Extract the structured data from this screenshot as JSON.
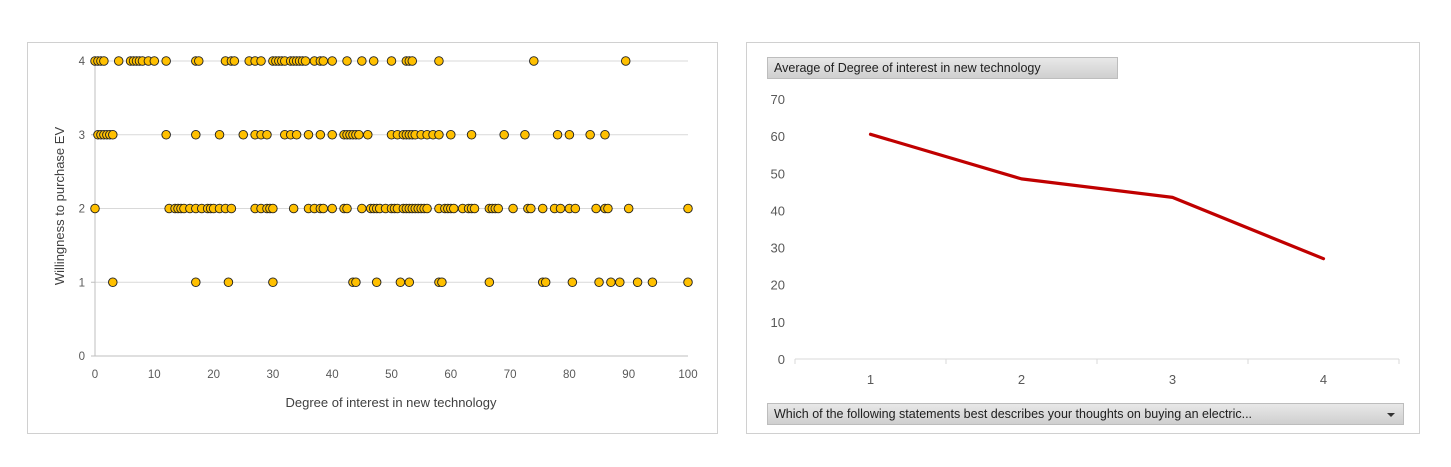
{
  "chart_data": [
    {
      "type": "scatter",
      "xlabel": "Degree of interest in new technology",
      "ylabel": "Willingness to purchase EV",
      "xlim": [
        0,
        100
      ],
      "ylim": [
        0,
        4
      ],
      "x_ticks": [
        "0",
        "10",
        "20",
        "30",
        "40",
        "50",
        "60",
        "70",
        "80",
        "90",
        "100"
      ],
      "y_ticks": [
        "0",
        "1",
        "2",
        "3",
        "4"
      ],
      "grid": "horizontal",
      "marker_color": "#FFC000",
      "points_by_y": {
        "4": [
          0,
          0.5,
          1,
          1.5,
          4,
          6,
          6.5,
          7,
          7.5,
          8,
          9,
          10,
          12,
          17,
          17.5,
          22,
          23,
          23.5,
          26,
          27,
          28,
          30,
          30.5,
          31,
          31.5,
          32,
          33,
          33.5,
          34,
          34.5,
          35,
          35.5,
          37,
          38,
          38.5,
          40,
          42.5,
          45,
          47,
          50,
          52.5,
          53,
          53.5,
          58,
          74,
          89.5
        ],
        "3": [
          0.5,
          1,
          1.5,
          2,
          2.5,
          3,
          12,
          17,
          21,
          25,
          27,
          28,
          29,
          32,
          33,
          34,
          36,
          38,
          40,
          42,
          42.5,
          43,
          43.5,
          44,
          44.5,
          46,
          50,
          51,
          52,
          52.5,
          53,
          53.5,
          54,
          55,
          56,
          57,
          58,
          60,
          63.5,
          69,
          72.5,
          78,
          80,
          83.5,
          86
        ],
        "2": [
          0,
          12.5,
          13.5,
          14,
          14.5,
          15,
          16,
          17,
          18,
          19,
          19.5,
          20,
          21,
          22,
          23,
          27,
          28,
          29,
          29.5,
          30,
          33.5,
          36,
          37,
          38,
          38.5,
          40,
          42,
          42.5,
          45,
          46.5,
          47,
          47.5,
          48,
          49,
          50,
          50.5,
          51,
          52,
          52.5,
          53,
          53.5,
          54,
          54.5,
          55,
          55.5,
          56,
          58,
          59,
          59.5,
          60,
          60.5,
          62,
          63,
          63.5,
          64,
          66.5,
          67,
          67.5,
          68,
          70.5,
          73,
          73.5,
          75.5,
          77.5,
          78.5,
          80,
          81,
          84.5,
          86,
          86.5,
          90,
          100
        ],
        "1": [
          3,
          17,
          22.5,
          30,
          43.5,
          44,
          47.5,
          51.5,
          53,
          58,
          58.5,
          66.5,
          75.5,
          76,
          80.5,
          85,
          87,
          88.5,
          91.5,
          94,
          100
        ]
      }
    },
    {
      "type": "line",
      "field_label": "Average of Degree of interest in new technology",
      "axis_field_label": "Which of the following statements best describes your thoughts on buying an electric...",
      "categories": [
        "1",
        "2",
        "3",
        "4"
      ],
      "values": [
        60.5,
        48.5,
        43.5,
        27
      ],
      "ylim": [
        0,
        70
      ],
      "y_ticks": [
        "0",
        "10",
        "20",
        "30",
        "40",
        "50",
        "60",
        "70"
      ],
      "grid": "none",
      "line_color": "#C00000"
    }
  ]
}
